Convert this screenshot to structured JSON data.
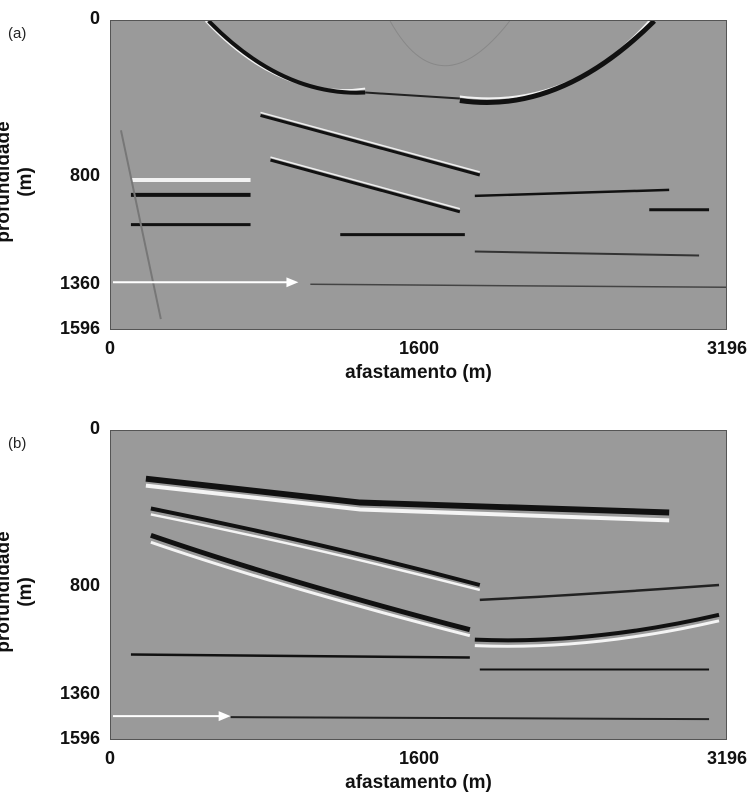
{
  "panels": [
    {
      "label": "(a)",
      "xlabel": "afastamento (m)",
      "ylabel": "profundidade (m)",
      "xticks": [
        "0",
        "1600",
        "3196"
      ],
      "yticks": [
        "0",
        "800",
        "1360",
        "1596"
      ],
      "arrow_depth": 1360,
      "arrow_end_offset": 1000
    },
    {
      "label": "(b)",
      "xlabel": "afastamento (m)",
      "ylabel": "profundidade (m)",
      "xticks": [
        "0",
        "1600",
        "3196"
      ],
      "yticks": [
        "0",
        "800",
        "1360",
        "1596"
      ],
      "arrow_depth": 1360,
      "arrow_end_offset": 650
    }
  ],
  "colors": {
    "background": "#9a9a9a",
    "reflector_dark": "#111111",
    "reflector_light": "#f4f4f4",
    "arrow": "#ffffff"
  },
  "axis": {
    "x_range": [
      0,
      3196
    ],
    "y_range": [
      0,
      1596
    ]
  }
}
